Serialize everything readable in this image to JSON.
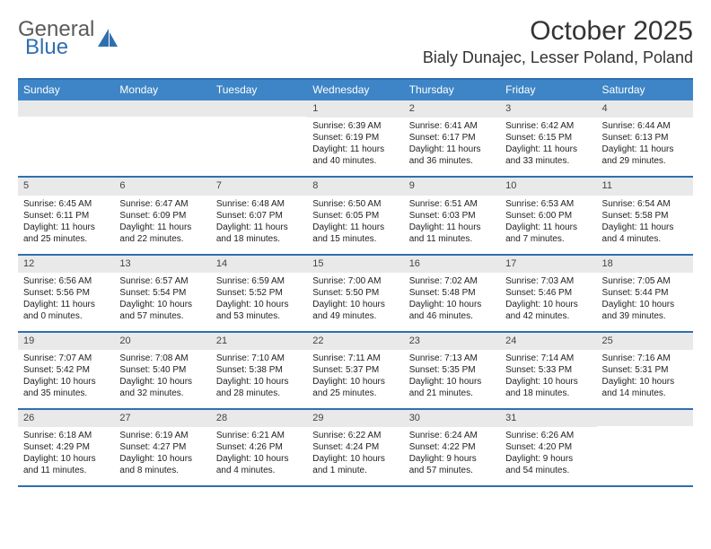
{
  "logo": {
    "word1": "General",
    "word2": "Blue"
  },
  "colors": {
    "header_bg": "#3d85c6",
    "border": "#2f6fb0",
    "daybar": "#e9e9e9",
    "logo_gray": "#5a5a5a",
    "logo_blue": "#2f6fb0"
  },
  "title": "October 2025",
  "location": "Bialy Dunajec, Lesser Poland, Poland",
  "dow": [
    "Sunday",
    "Monday",
    "Tuesday",
    "Wednesday",
    "Thursday",
    "Friday",
    "Saturday"
  ],
  "weeks": [
    [
      null,
      null,
      null,
      {
        "n": "1",
        "sr": "Sunrise: 6:39 AM",
        "ss": "Sunset: 6:19 PM",
        "d1": "Daylight: 11 hours",
        "d2": "and 40 minutes."
      },
      {
        "n": "2",
        "sr": "Sunrise: 6:41 AM",
        "ss": "Sunset: 6:17 PM",
        "d1": "Daylight: 11 hours",
        "d2": "and 36 minutes."
      },
      {
        "n": "3",
        "sr": "Sunrise: 6:42 AM",
        "ss": "Sunset: 6:15 PM",
        "d1": "Daylight: 11 hours",
        "d2": "and 33 minutes."
      },
      {
        "n": "4",
        "sr": "Sunrise: 6:44 AM",
        "ss": "Sunset: 6:13 PM",
        "d1": "Daylight: 11 hours",
        "d2": "and 29 minutes."
      }
    ],
    [
      {
        "n": "5",
        "sr": "Sunrise: 6:45 AM",
        "ss": "Sunset: 6:11 PM",
        "d1": "Daylight: 11 hours",
        "d2": "and 25 minutes."
      },
      {
        "n": "6",
        "sr": "Sunrise: 6:47 AM",
        "ss": "Sunset: 6:09 PM",
        "d1": "Daylight: 11 hours",
        "d2": "and 22 minutes."
      },
      {
        "n": "7",
        "sr": "Sunrise: 6:48 AM",
        "ss": "Sunset: 6:07 PM",
        "d1": "Daylight: 11 hours",
        "d2": "and 18 minutes."
      },
      {
        "n": "8",
        "sr": "Sunrise: 6:50 AM",
        "ss": "Sunset: 6:05 PM",
        "d1": "Daylight: 11 hours",
        "d2": "and 15 minutes."
      },
      {
        "n": "9",
        "sr": "Sunrise: 6:51 AM",
        "ss": "Sunset: 6:03 PM",
        "d1": "Daylight: 11 hours",
        "d2": "and 11 minutes."
      },
      {
        "n": "10",
        "sr": "Sunrise: 6:53 AM",
        "ss": "Sunset: 6:00 PM",
        "d1": "Daylight: 11 hours",
        "d2": "and 7 minutes."
      },
      {
        "n": "11",
        "sr": "Sunrise: 6:54 AM",
        "ss": "Sunset: 5:58 PM",
        "d1": "Daylight: 11 hours",
        "d2": "and 4 minutes."
      }
    ],
    [
      {
        "n": "12",
        "sr": "Sunrise: 6:56 AM",
        "ss": "Sunset: 5:56 PM",
        "d1": "Daylight: 11 hours",
        "d2": "and 0 minutes."
      },
      {
        "n": "13",
        "sr": "Sunrise: 6:57 AM",
        "ss": "Sunset: 5:54 PM",
        "d1": "Daylight: 10 hours",
        "d2": "and 57 minutes."
      },
      {
        "n": "14",
        "sr": "Sunrise: 6:59 AM",
        "ss": "Sunset: 5:52 PM",
        "d1": "Daylight: 10 hours",
        "d2": "and 53 minutes."
      },
      {
        "n": "15",
        "sr": "Sunrise: 7:00 AM",
        "ss": "Sunset: 5:50 PM",
        "d1": "Daylight: 10 hours",
        "d2": "and 49 minutes."
      },
      {
        "n": "16",
        "sr": "Sunrise: 7:02 AM",
        "ss": "Sunset: 5:48 PM",
        "d1": "Daylight: 10 hours",
        "d2": "and 46 minutes."
      },
      {
        "n": "17",
        "sr": "Sunrise: 7:03 AM",
        "ss": "Sunset: 5:46 PM",
        "d1": "Daylight: 10 hours",
        "d2": "and 42 minutes."
      },
      {
        "n": "18",
        "sr": "Sunrise: 7:05 AM",
        "ss": "Sunset: 5:44 PM",
        "d1": "Daylight: 10 hours",
        "d2": "and 39 minutes."
      }
    ],
    [
      {
        "n": "19",
        "sr": "Sunrise: 7:07 AM",
        "ss": "Sunset: 5:42 PM",
        "d1": "Daylight: 10 hours",
        "d2": "and 35 minutes."
      },
      {
        "n": "20",
        "sr": "Sunrise: 7:08 AM",
        "ss": "Sunset: 5:40 PM",
        "d1": "Daylight: 10 hours",
        "d2": "and 32 minutes."
      },
      {
        "n": "21",
        "sr": "Sunrise: 7:10 AM",
        "ss": "Sunset: 5:38 PM",
        "d1": "Daylight: 10 hours",
        "d2": "and 28 minutes."
      },
      {
        "n": "22",
        "sr": "Sunrise: 7:11 AM",
        "ss": "Sunset: 5:37 PM",
        "d1": "Daylight: 10 hours",
        "d2": "and 25 minutes."
      },
      {
        "n": "23",
        "sr": "Sunrise: 7:13 AM",
        "ss": "Sunset: 5:35 PM",
        "d1": "Daylight: 10 hours",
        "d2": "and 21 minutes."
      },
      {
        "n": "24",
        "sr": "Sunrise: 7:14 AM",
        "ss": "Sunset: 5:33 PM",
        "d1": "Daylight: 10 hours",
        "d2": "and 18 minutes."
      },
      {
        "n": "25",
        "sr": "Sunrise: 7:16 AM",
        "ss": "Sunset: 5:31 PM",
        "d1": "Daylight: 10 hours",
        "d2": "and 14 minutes."
      }
    ],
    [
      {
        "n": "26",
        "sr": "Sunrise: 6:18 AM",
        "ss": "Sunset: 4:29 PM",
        "d1": "Daylight: 10 hours",
        "d2": "and 11 minutes."
      },
      {
        "n": "27",
        "sr": "Sunrise: 6:19 AM",
        "ss": "Sunset: 4:27 PM",
        "d1": "Daylight: 10 hours",
        "d2": "and 8 minutes."
      },
      {
        "n": "28",
        "sr": "Sunrise: 6:21 AM",
        "ss": "Sunset: 4:26 PM",
        "d1": "Daylight: 10 hours",
        "d2": "and 4 minutes."
      },
      {
        "n": "29",
        "sr": "Sunrise: 6:22 AM",
        "ss": "Sunset: 4:24 PM",
        "d1": "Daylight: 10 hours",
        "d2": "and 1 minute."
      },
      {
        "n": "30",
        "sr": "Sunrise: 6:24 AM",
        "ss": "Sunset: 4:22 PM",
        "d1": "Daylight: 9 hours",
        "d2": "and 57 minutes."
      },
      {
        "n": "31",
        "sr": "Sunrise: 6:26 AM",
        "ss": "Sunset: 4:20 PM",
        "d1": "Daylight: 9 hours",
        "d2": "and 54 minutes."
      },
      null
    ]
  ]
}
